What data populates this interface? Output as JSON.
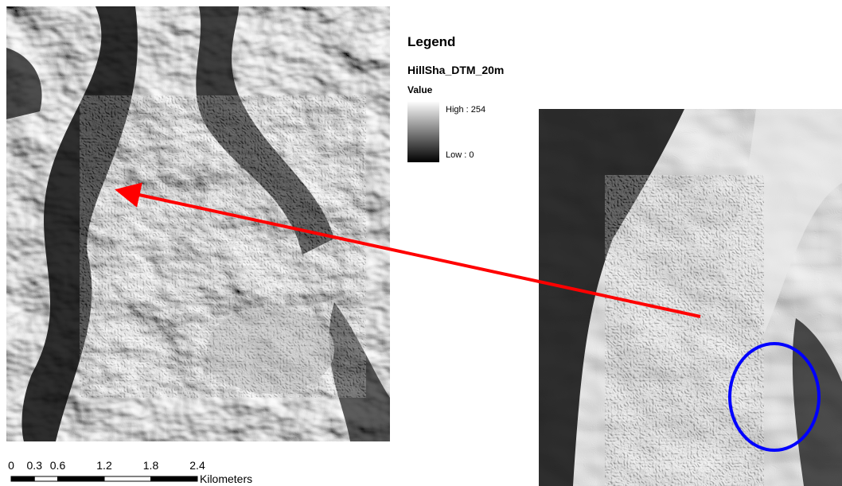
{
  "legend": {
    "title": "Legend",
    "layer": "HillSha_DTM_20m",
    "field": "Value",
    "high": "High : 254",
    "low": "Low : 0"
  },
  "scale_bar": {
    "labels": [
      0,
      0.3,
      0.6,
      1.2,
      1.8,
      2.4
    ],
    "unit": "Kilometers"
  }
}
